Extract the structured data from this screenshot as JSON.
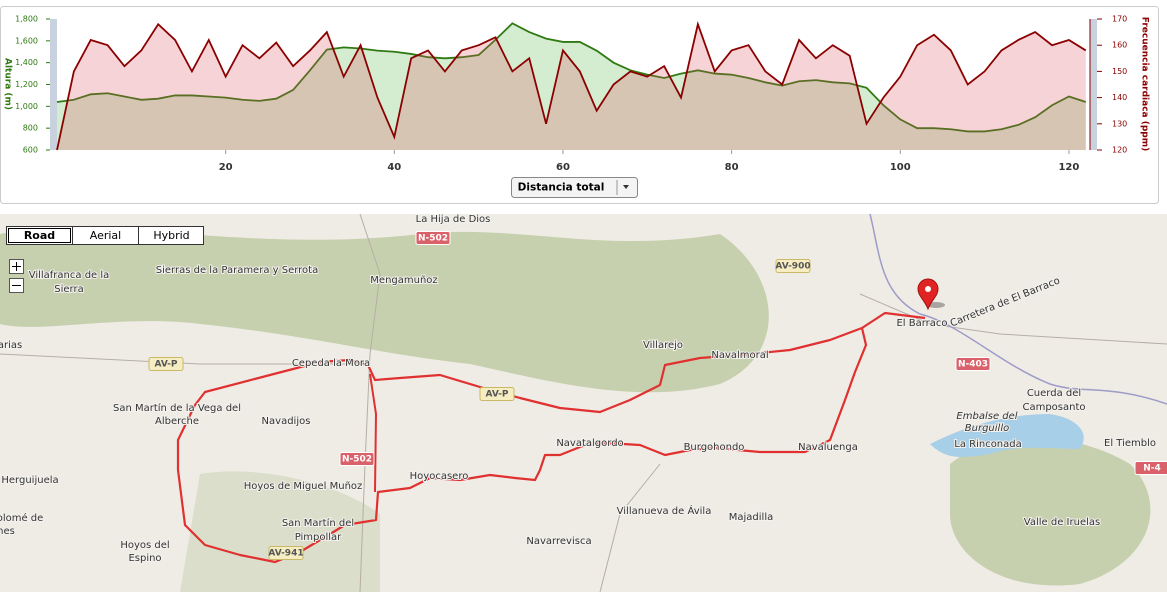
{
  "chart_data": {
    "type": "area",
    "x": [
      0,
      2,
      4,
      6,
      8,
      10,
      12,
      14,
      16,
      18,
      20,
      22,
      24,
      26,
      28,
      30,
      32,
      34,
      36,
      38,
      40,
      42,
      44,
      46,
      48,
      50,
      52,
      54,
      56,
      58,
      60,
      62,
      64,
      66,
      68,
      70,
      72,
      74,
      76,
      78,
      80,
      82,
      84,
      86,
      88,
      90,
      92,
      94,
      96,
      98,
      100,
      102,
      104,
      106,
      108,
      110,
      112,
      114,
      116,
      118,
      120,
      122
    ],
    "series": [
      {
        "name": "Altura (m)",
        "color": "#2f7a12",
        "fill": "rgba(60,170,40,0.22)",
        "values": [
          1040,
          1060,
          1110,
          1120,
          1090,
          1060,
          1070,
          1100,
          1100,
          1090,
          1080,
          1060,
          1050,
          1070,
          1150,
          1330,
          1520,
          1540,
          1530,
          1510,
          1500,
          1480,
          1450,
          1440,
          1450,
          1470,
          1610,
          1760,
          1680,
          1620,
          1590,
          1590,
          1510,
          1400,
          1330,
          1290,
          1260,
          1300,
          1330,
          1300,
          1290,
          1260,
          1220,
          1190,
          1230,
          1240,
          1220,
          1210,
          1170,
          1010,
          880,
          800,
          800,
          790,
          770,
          770,
          790,
          830,
          900,
          1010,
          1090,
          1040
        ]
      },
      {
        "name": "Frecuencia cardiaca (ppm)",
        "color": "#8b0000",
        "fill": "rgba(220,80,90,0.25)",
        "axis": "y2",
        "values": [
          120,
          150,
          162,
          160,
          152,
          158,
          168,
          162,
          150,
          162,
          148,
          160,
          155,
          161,
          152,
          158,
          165,
          148,
          160,
          140,
          125,
          155,
          158,
          150,
          158,
          160,
          163,
          150,
          155,
          130,
          158,
          150,
          135,
          145,
          150,
          148,
          152,
          140,
          168,
          150,
          158,
          160,
          150,
          145,
          162,
          155,
          160,
          156,
          130,
          140,
          148,
          160,
          164,
          158,
          145,
          150,
          158,
          162,
          165,
          160,
          162,
          158
        ]
      }
    ],
    "xlim": [
      0,
      122.5
    ],
    "xticks": [
      20,
      40,
      60,
      80,
      100,
      120
    ],
    "ylim": [
      600,
      1800
    ],
    "yticks": [
      600,
      800,
      {
        "value": 1000,
        "label": "1,000"
      },
      {
        "value": 1200,
        "label": "1,200"
      },
      {
        "value": 1400,
        "label": "1,400"
      },
      {
        "value": 1600,
        "label": "1,600"
      },
      {
        "value": 1800,
        "label": "1,800"
      }
    ],
    "y2lim": [
      120,
      170
    ],
    "y2ticks": [
      120,
      130,
      140,
      150,
      160,
      170
    ]
  },
  "controls": {
    "x_axis_select": "Distancia total"
  },
  "map": {
    "types": [
      "Road",
      "Aerial",
      "Hybrid"
    ],
    "places": [
      "La Hija de Dios",
      "Sierras de la Paramera y Serrota",
      "Villafranca de la",
      "Sierra",
      "Mengamuñoz",
      "Villarejo",
      "Navalmoral",
      "El Barraco",
      "Carretera de El Barraco",
      "arias",
      "Cepeda la Mora",
      "San Martín de la Vega del",
      "Alberche",
      "Navadijos",
      "Cuerda del",
      "Camposanto",
      "Embalse del",
      "Burguillo",
      "La Rinconada",
      "El Tiemblo",
      "Navatalgordo",
      "Burgohondo",
      "Navaluenga",
      "Hoyocasero",
      "Herguijuela",
      "Hoyos de Miguel Muñoz",
      "Villanueva de Ávila",
      "Majadilla",
      "olomé de",
      "nes",
      "San Martín del",
      "Pimpollar",
      "Hoyos del",
      "Espino",
      "Navarrevisca",
      "Valle de Iruelas"
    ],
    "roads": [
      "N-502",
      "AV-900",
      "AV-P",
      "AV-P",
      "N-403",
      "N-502",
      "AV-941",
      "N-4"
    ]
  }
}
